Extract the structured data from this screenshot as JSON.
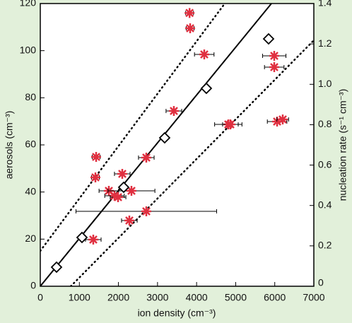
{
  "chart_data": {
    "type": "scatter",
    "xlabel": "ion density (cm⁻³)",
    "ylabel": "aerosols (cm⁻³)",
    "y2label": "nucleation rate (s⁻¹ cm⁻³)",
    "xlim": [
      0,
      7000
    ],
    "xticks": [
      0,
      1000,
      2000,
      3000,
      4000,
      5000,
      6000,
      7000
    ],
    "ylim": [
      0,
      120
    ],
    "yticks": [
      0,
      20,
      40,
      60,
      80,
      100,
      120
    ],
    "y2lim": [
      0,
      1.4
    ],
    "y2ticks": [
      0,
      0.2,
      0.4,
      0.6,
      {
        "value": 0.8,
        "label": "0.8"
      },
      {
        "value": 1.0,
        "label": "1.0"
      },
      1.2,
      1.4
    ],
    "series": [
      {
        "marker": "asterisk",
        "color": "#e03040",
        "x": [
          3820,
          3835,
          4196,
          5987,
          5987,
          3418,
          4811,
          4865,
          6060,
          6204,
          1429,
          2713,
          1411,
          2098,
          1754,
          1899,
          1990,
          2333,
          2713,
          2279,
          1356
        ],
        "values": [
          116,
          109.5,
          98.4,
          97.8,
          93,
          74.4,
          68.7,
          68.7,
          69.9,
          70.8,
          54.9,
          54.6,
          46.2,
          47.7,
          40.5,
          38.4,
          37.8,
          40.5,
          31.8,
          27.9,
          19.8
        ],
        "xerr": [
          100,
          100,
          250,
          300,
          250,
          200,
          350,
          200,
          250,
          150,
          100,
          200,
          100,
          200,
          250,
          250,
          200,
          600,
          1800,
          200,
          200
        ]
      },
      {
        "marker": "diamond",
        "color": "#000000",
        "x": [
          416,
          1067,
          2134,
          3183,
          4250,
          5842
        ],
        "values": [
          8.1,
          20.7,
          42,
          63,
          84,
          105
        ]
      },
      {
        "marker": "line",
        "color": "#000000",
        "x": [
          0,
          5914
        ],
        "values": [
          0,
          120
        ]
      },
      {
        "marker": "dotted",
        "color": "#000000",
        "x": [
          0,
          4721
        ],
        "values": [
          15,
          120
        ]
      },
      {
        "marker": "dotted",
        "color": "#000000",
        "x": [
          780,
          7000
        ],
        "values": [
          0,
          104.4
        ]
      }
    ]
  }
}
